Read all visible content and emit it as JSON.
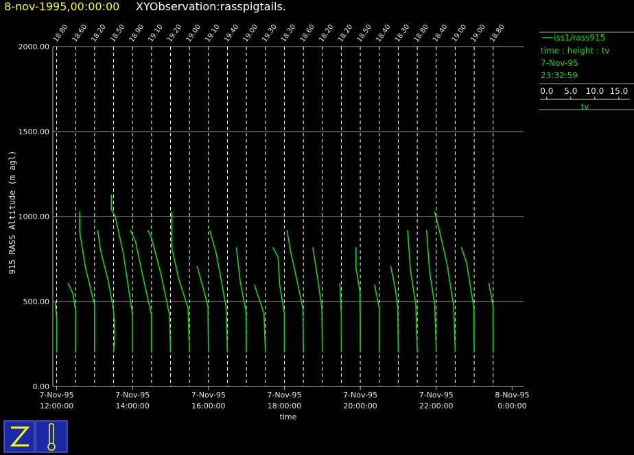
{
  "chart_data": {
    "type": "pigtail",
    "title": "8-nov-1995,00:00:00",
    "subtitle": "XYObservation:rasspigtails.",
    "xlabel": "time",
    "ylabel": "915 RASS Altitude (m agl)",
    "xlim": [
      11.9,
      24.3
    ],
    "xticks": [
      {
        "value": 12,
        "label": "7-Nov-95",
        "time": "12:00:00"
      },
      {
        "value": 14,
        "label": "7-Nov-95",
        "time": "14:00:00"
      },
      {
        "value": 16,
        "label": "7-Nov-95",
        "time": "16:00:00"
      },
      {
        "value": 18,
        "label": "7-Nov-95",
        "time": "18:00:00"
      },
      {
        "value": 20,
        "label": "7-Nov-95",
        "time": "20:00:00"
      },
      {
        "value": 22,
        "label": "7-Nov-95",
        "time": "22:00:00"
      },
      {
        "value": 24,
        "label": "8-Nov-95",
        "time": "0:00:00"
      }
    ],
    "ylim": [
      0,
      2000
    ],
    "yticks": [
      {
        "value": 0,
        "label": "0.00"
      },
      {
        "value": 500,
        "label": "500.00"
      },
      {
        "value": 1000,
        "label": "1000.00"
      },
      {
        "value": 1500,
        "label": "1500.00"
      },
      {
        "value": 2000,
        "label": "2000.00"
      }
    ],
    "grid": true,
    "color": "#00e000",
    "series_name": "iss1/rass915",
    "legend_lines": [
      "time : height : tv",
      "7-Nov-95",
      "23:32:59"
    ],
    "scale": {
      "lim": [
        -1.4,
        17.3
      ],
      "label": "tv",
      "ticks": [
        {
          "value": 0,
          "label": "0.0"
        },
        {
          "value": 5,
          "label": "5.0"
        },
        {
          "value": 10,
          "label": "10.0"
        },
        {
          "value": 15,
          "label": "15.0"
        }
      ]
    },
    "profiles": [
      {
        "x": 12.0,
        "base": {
          "value": 18.8,
          "label": "18.80"
        },
        "height": [
          200,
          400,
          500
        ],
        "tv": [
          18.8,
          18.8,
          18.5
        ]
      },
      {
        "x": 12.5,
        "base": {
          "value": 18.6,
          "label": "18.60"
        },
        "height": [
          200,
          450,
          550,
          610
        ],
        "tv": [
          18.6,
          18.6,
          18.0,
          17.0
        ]
      },
      {
        "x": 13.0,
        "base": {
          "value": 18.2,
          "label": "18.20"
        },
        "height": [
          200,
          480,
          700,
          910,
          1030
        ],
        "tv": [
          18.2,
          18.2,
          16.3,
          15.1,
          15.1
        ]
      },
      {
        "x": 13.5,
        "base": {
          "value": 18.5,
          "label": "18.50"
        },
        "height": [
          200,
          300,
          450,
          620,
          800,
          920
        ],
        "tv": [
          18.5,
          18.8,
          18.5,
          17.4,
          15.8,
          15.2
        ]
      },
      {
        "x": 14.0,
        "base": {
          "value": 18.9,
          "label": "18.90"
        },
        "height": [
          200,
          420,
          780,
          1000,
          1040,
          1130
        ],
        "tv": [
          18.9,
          18.9,
          17.0,
          15.3,
          14.5,
          14.5
        ]
      },
      {
        "x": 14.5,
        "base": {
          "value": 19.1,
          "label": "19.10"
        },
        "height": [
          200,
          420,
          660,
          850,
          920
        ],
        "tv": [
          19.1,
          19.1,
          17.2,
          15.8,
          14.7
        ]
      },
      {
        "x": 15.0,
        "base": {
          "value": 19.2,
          "label": "19.20"
        },
        "height": [
          200,
          420,
          650,
          870,
          920
        ],
        "tv": [
          19.2,
          19.0,
          17.3,
          15.3,
          14.5
        ]
      },
      {
        "x": 15.5,
        "base": {
          "value": 19.0,
          "label": "19.00"
        },
        "height": [
          200,
          460,
          640,
          820,
          1030
        ],
        "tv": [
          19.0,
          18.7,
          16.7,
          15.3,
          15.3
        ]
      },
      {
        "x": 16.0,
        "base": {
          "value": 19.1,
          "label": "19.10"
        },
        "height": [
          200,
          470,
          580,
          710
        ],
        "tv": [
          19.1,
          19.0,
          18.0,
          16.7
        ]
      },
      {
        "x": 16.5,
        "base": {
          "value": 19.4,
          "label": "19.40"
        },
        "height": [
          200,
          470,
          780,
          920
        ],
        "tv": [
          19.4,
          19.1,
          17.1,
          15.7
        ]
      },
      {
        "x": 17.0,
        "base": {
          "value": 19.0,
          "label": "19.00"
        },
        "height": [
          200,
          440,
          620,
          820
        ],
        "tv": [
          19.0,
          18.9,
          17.7,
          16.9
        ]
      },
      {
        "x": 17.5,
        "base": {
          "value": 19.3,
          "label": "19.30"
        },
        "height": [
          200,
          430,
          600
        ],
        "tv": [
          19.3,
          19.0,
          17.0
        ]
      },
      {
        "x": 18.0,
        "base": {
          "value": 18.3,
          "label": "18.30"
        },
        "height": [
          200,
          430,
          600,
          760,
          820
        ],
        "tv": [
          18.3,
          18.3,
          17.3,
          17.0,
          15.9
        ]
      },
      {
        "x": 18.5,
        "base": {
          "value": 18.6,
          "label": "18.60"
        },
        "height": [
          200,
          460,
          660,
          800,
          920
        ],
        "tv": [
          18.6,
          18.5,
          17.0,
          15.9,
          15.2
        ]
      },
      {
        "x": 19.0,
        "base": {
          "value": 18.2,
          "label": "18.20"
        },
        "height": [
          200,
          460,
          660,
          820
        ],
        "tv": [
          18.2,
          18.1,
          17.1,
          16.2
        ]
      },
      {
        "x": 19.5,
        "base": {
          "value": 18.2,
          "label": "18.20"
        },
        "height": [
          200,
          420,
          610
        ],
        "tv": [
          18.2,
          18.2,
          17.9
        ]
      },
      {
        "x": 20.0,
        "base": {
          "value": 18.5,
          "label": "18.50"
        },
        "height": [
          200,
          400,
          560,
          700,
          820
        ],
        "tv": [
          18.5,
          18.5,
          18.4,
          17.6,
          17.6
        ]
      },
      {
        "x": 20.5,
        "base": {
          "value": 18.4,
          "label": "18.40"
        },
        "height": [
          200,
          460,
          600
        ],
        "tv": [
          18.4,
          18.4,
          17.4
        ]
      },
      {
        "x": 21.0,
        "base": {
          "value": 18.3,
          "label": "18.30"
        },
        "height": [
          200,
          460,
          590,
          710
        ],
        "tv": [
          18.3,
          18.2,
          17.6,
          16.7
        ]
      },
      {
        "x": 21.5,
        "base": {
          "value": 18.8,
          "label": "18.80"
        },
        "height": [
          200,
          480,
          680,
          920
        ],
        "tv": [
          18.8,
          18.5,
          17.4,
          16.8
        ]
      },
      {
        "x": 22.0,
        "base": {
          "value": 18.4,
          "label": "18.40"
        },
        "height": [
          200,
          480,
          680,
          920
        ],
        "tv": [
          18.4,
          18.1,
          17.0,
          16.4
        ]
      },
      {
        "x": 22.5,
        "base": {
          "value": 19.0,
          "label": "19.00"
        },
        "height": [
          200,
          470,
          720,
          930,
          1030
        ],
        "tv": [
          19.0,
          18.7,
          17.3,
          15.6,
          14.7
        ]
      },
      {
        "x": 23.0,
        "base": {
          "value": 19.0,
          "label": "19.00"
        },
        "height": [
          200,
          470,
          730,
          820
        ],
        "tv": [
          19.0,
          18.9,
          17.4,
          16.3
        ]
      },
      {
        "x": 23.5,
        "base": {
          "value": 18.8,
          "label": "18.80"
        },
        "height": [
          200,
          470,
          610
        ],
        "tv": [
          18.8,
          18.8,
          17.9
        ]
      }
    ]
  }
}
